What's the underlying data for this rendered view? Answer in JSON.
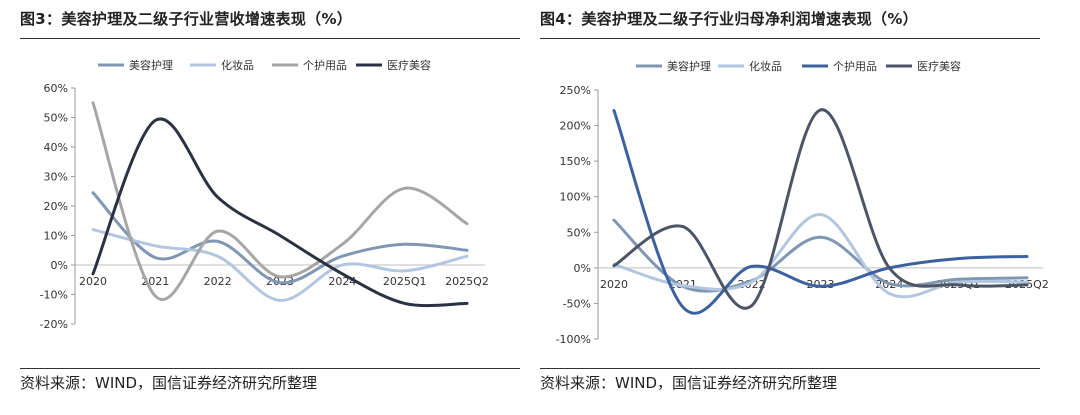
{
  "panels": [
    {
      "title": "图3：美容护理及二级子行业营收增速表现（%）",
      "source": "资料来源：WIND，国信证券经济研究所整理",
      "chart_data": {
        "type": "line",
        "categories": [
          "2020",
          "2021",
          "2022",
          "2023",
          "2024",
          "2025Q1",
          "2025Q2"
        ],
        "ylim": [
          -20,
          60
        ],
        "yticks": [
          -20,
          -10,
          0,
          10,
          20,
          30,
          40,
          50,
          60
        ],
        "ytick_labels": [
          "-20%",
          "-10%",
          "0%",
          "10%",
          "20%",
          "30%",
          "40%",
          "50%",
          "60%"
        ],
        "grid": false,
        "legend_position": "top",
        "series": [
          {
            "name": "美容护理",
            "color": "#7f97b2",
            "values": [
              24.5,
              2.5,
              8,
              -6,
              3,
              7,
              5
            ]
          },
          {
            "name": "化妆品",
            "color": "#b3c6e0",
            "values": [
              12,
              6.5,
              3,
              -12,
              0,
              -2,
              3
            ]
          },
          {
            "name": "个护用品",
            "color": "#a6a6a6",
            "values": [
              55,
              -10.5,
              11.5,
              -4,
              7,
              26,
              14
            ]
          },
          {
            "name": "医疗美容",
            "color": "#2b3140",
            "values": [
              -3,
              49,
              23,
              10,
              -3,
              -13,
              -13
            ]
          }
        ]
      }
    },
    {
      "title": "图4：美容护理及二级子行业归母净利润增速表现（%）",
      "source": "资料来源：WIND，国信证券经济研究所整理",
      "chart_data": {
        "type": "line",
        "categories": [
          "2020",
          "2021",
          "2022",
          "2023",
          "2024",
          "2025Q1",
          "2025Q2"
        ],
        "ylim": [
          -100,
          250
        ],
        "yticks": [
          -100,
          -50,
          0,
          50,
          100,
          150,
          200,
          250
        ],
        "ytick_labels": [
          "-100%",
          "-50%",
          "0%",
          "50%",
          "100%",
          "150%",
          "200%",
          "250%"
        ],
        "grid": false,
        "legend_position": "top",
        "series": [
          {
            "name": "美容护理",
            "color": "#7f97b2",
            "values": [
              67,
              -26,
              -18,
              43,
              -22,
              -16,
              -14
            ]
          },
          {
            "name": "化妆品",
            "color": "#b3c6e0",
            "values": [
              5,
              -25,
              -20,
              75,
              -36,
              -20,
              -20
            ]
          },
          {
            "name": "个护用品",
            "color": "#3c61a0",
            "values": [
              221,
              -55,
              2,
              -26,
              0,
              13,
              16
            ]
          },
          {
            "name": "医疗美容",
            "color": "#4b5566",
            "values": [
              3,
              58,
              -53,
              222,
              0,
              -24,
              -24
            ]
          }
        ]
      }
    }
  ]
}
